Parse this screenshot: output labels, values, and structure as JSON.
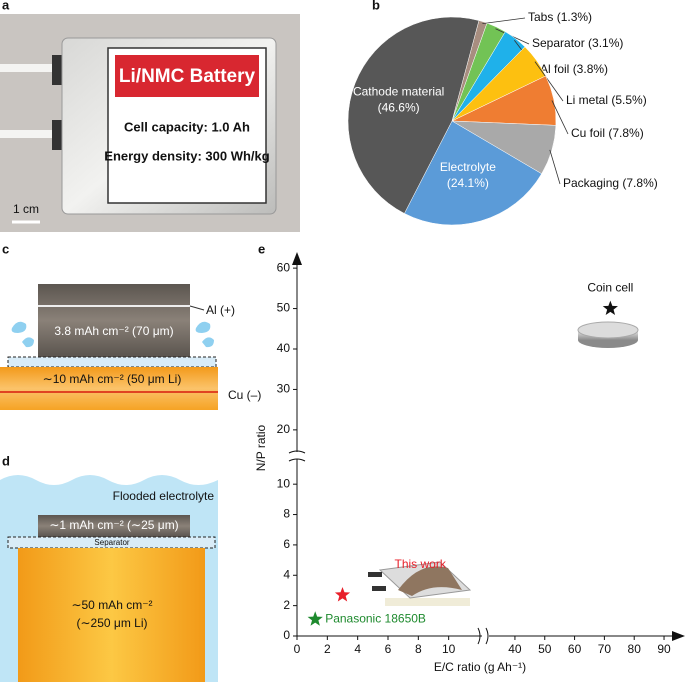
{
  "panel_labels": [
    "a",
    "b",
    "c",
    "d",
    "e"
  ],
  "photo": {
    "title": "Li/NMC Battery",
    "lines": [
      "Cell capacity: 1.0 Ah",
      "Energy density: 300 Wh/kg"
    ],
    "scale_bar": "1 cm"
  },
  "diagram_c": {
    "al": "Al (+)",
    "cathode": "3.8 mAh cm⁻² (70 μm)",
    "anode": "∼10 mAh cm⁻² (50 μm Li)",
    "cu": "Cu (–)"
  },
  "diagram_d": {
    "electrolyte": "Flooded electrolyte",
    "cathode": "∼1 mAh cm⁻² (∼25 μm)",
    "separator": "Separator",
    "anode": [
      "∼50 mAh cm⁻²",
      "(∼250 μm Li)"
    ]
  },
  "chart_data": [
    {
      "type": "pie",
      "categories": [
        "Tabs",
        "Separator",
        "Al foil",
        "Li metal",
        "Cu foil",
        "Packaging",
        "Electrolyte",
        "Cathode material"
      ],
      "values": [
        1.3,
        3.1,
        3.8,
        5.5,
        7.8,
        7.8,
        24.1,
        46.6
      ],
      "value_labels": [
        "(1.3%)",
        "(3.1%)",
        "(3.8%)",
        "(5.5%)",
        "(7.8%)",
        "(7.8%)",
        "(24.1%)",
        "(46.6%)"
      ],
      "colors": [
        "#a88e80",
        "#72c355",
        "#1fb1ea",
        "#fdc010",
        "#ef7d32",
        "#a9a9a9",
        "#5b9bd8",
        "#575757"
      ]
    },
    {
      "type": "scatter",
      "xlabel": "E/C ratio (g Ah⁻¹)",
      "ylabel": "N/P ratio",
      "x_segments": [
        {
          "xlim": [
            0,
            12
          ],
          "xticks": [
            0,
            2,
            4,
            6,
            8,
            10
          ]
        },
        {
          "xlim": [
            36,
            92
          ],
          "xticks": [
            40,
            50,
            60,
            70,
            80,
            90
          ]
        }
      ],
      "y_segments": [
        {
          "ylim": [
            0,
            11
          ],
          "yticks": [
            0,
            2,
            4,
            6,
            8,
            10
          ]
        },
        {
          "ylim": [
            17,
            63
          ],
          "yticks": [
            20,
            30,
            40,
            50,
            60
          ]
        }
      ],
      "series": [
        {
          "name": "Panasonic 18650B",
          "color": "#1e8a2e",
          "x": [
            1.2
          ],
          "values": [
            1.1
          ]
        },
        {
          "name": "This work",
          "color": "#e8202a",
          "x": [
            3
          ],
          "values": [
            2.7
          ]
        },
        {
          "name": "Coin cell",
          "color": "#111111",
          "x": [
            72
          ],
          "values": [
            50
          ]
        }
      ]
    }
  ]
}
